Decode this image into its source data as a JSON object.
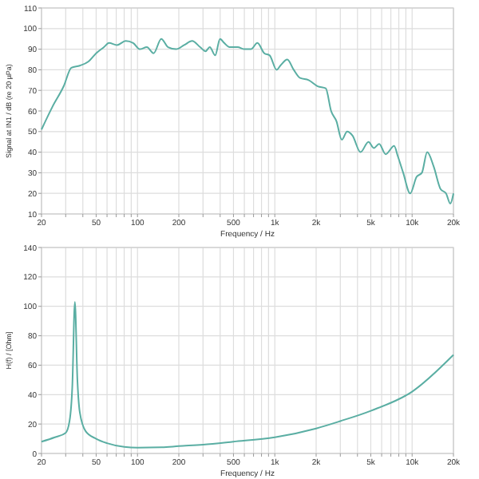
{
  "chart_data": [
    {
      "type": "line",
      "xlabel": "Frequency / Hz",
      "ylabel": "Signal at IN1 / dB (re 20 µPa)",
      "log": "x",
      "grid": true,
      "xlim": [
        20,
        20000
      ],
      "ylim": [
        10,
        110
      ],
      "xticks": [
        20,
        {
          "value": 30,
          "label": null
        },
        {
          "value": 40,
          "label": null
        },
        50,
        {
          "value": 60,
          "label": null
        },
        {
          "value": 70,
          "label": null
        },
        {
          "value": 80,
          "label": null
        },
        {
          "value": 90,
          "label": null
        },
        100,
        200,
        {
          "value": 300,
          "label": null
        },
        {
          "value": 400,
          "label": null
        },
        500,
        {
          "value": 600,
          "label": null
        },
        {
          "value": 700,
          "label": null
        },
        {
          "value": 800,
          "label": null
        },
        {
          "value": 900,
          "label": null
        },
        {
          "value": 1000,
          "label": "1k"
        },
        {
          "value": 2000,
          "label": "2k"
        },
        {
          "value": 3000,
          "label": null
        },
        {
          "value": 4000,
          "label": null
        },
        {
          "value": 5000,
          "label": "5k"
        },
        {
          "value": 6000,
          "label": null
        },
        {
          "value": 7000,
          "label": null
        },
        {
          "value": 8000,
          "label": null
        },
        {
          "value": 9000,
          "label": null
        },
        {
          "value": 10000,
          "label": "10k"
        },
        {
          "value": 20000,
          "label": "20k"
        }
      ],
      "yticks": [
        10,
        20,
        30,
        40,
        50,
        60,
        70,
        80,
        90,
        100,
        110
      ],
      "series": [
        {
          "color": "#5aaea3",
          "x": [
            20,
            24,
            29,
            33,
            38,
            44,
            50,
            57,
            62,
            71,
            82,
            93,
            104,
            117,
            131,
            149,
            167,
            191,
            219,
            250,
            286,
            313,
            336,
            368,
            399,
            428,
            468,
            536,
            602,
            670,
            747,
            839,
            917,
            1031,
            1097,
            1233,
            1373,
            1529,
            1764,
            2054,
            2350,
            2570,
            2812,
            3076,
            3364,
            3681,
            4208,
            4812,
            5260,
            5754,
            6412,
            7396,
            7872,
            8610,
            9680,
            10780,
            11780,
            12880,
            14360,
            16140,
            17660,
            18970,
            20000
          ],
          "values": [
            51,
            62,
            72,
            81,
            82,
            84,
            88,
            91,
            93,
            92,
            94,
            93,
            90,
            91,
            88,
            95,
            91,
            90,
            92,
            94,
            91,
            89,
            91,
            87,
            95,
            93,
            91,
            91,
            90,
            90,
            93,
            88,
            87,
            80,
            82,
            85,
            80,
            76,
            75,
            72,
            71,
            60,
            55,
            46,
            50,
            48,
            40,
            45,
            42,
            44,
            39,
            43,
            38,
            30,
            20,
            28,
            30,
            40,
            33,
            22,
            20,
            15,
            20
          ]
        }
      ]
    },
    {
      "type": "line",
      "xlabel": "Frequency / Hz",
      "ylabel": "H(f) / [Ohm]",
      "log": "x",
      "grid": true,
      "xlim": [
        20,
        20000
      ],
      "ylim": [
        0,
        140
      ],
      "xticks": [
        20,
        {
          "value": 30,
          "label": null
        },
        {
          "value": 40,
          "label": null
        },
        50,
        {
          "value": 60,
          "label": null
        },
        {
          "value": 70,
          "label": null
        },
        {
          "value": 80,
          "label": null
        },
        {
          "value": 90,
          "label": null
        },
        100,
        200,
        {
          "value": 300,
          "label": null
        },
        {
          "value": 400,
          "label": null
        },
        500,
        {
          "value": 600,
          "label": null
        },
        {
          "value": 700,
          "label": null
        },
        {
          "value": 800,
          "label": null
        },
        {
          "value": 900,
          "label": null
        },
        {
          "value": 1000,
          "label": "1k"
        },
        {
          "value": 2000,
          "label": "2k"
        },
        {
          "value": 3000,
          "label": null
        },
        {
          "value": 4000,
          "label": null
        },
        {
          "value": 5000,
          "label": "5k"
        },
        {
          "value": 6000,
          "label": null
        },
        {
          "value": 7000,
          "label": null
        },
        {
          "value": 8000,
          "label": null
        },
        {
          "value": 9000,
          "label": null
        },
        {
          "value": 10000,
          "label": "10k"
        },
        {
          "value": 20000,
          "label": "20k"
        }
      ],
      "yticks": [
        0,
        20,
        40,
        60,
        80,
        100,
        120,
        140
      ],
      "series": [
        {
          "color": "#5aaea3",
          "x": [
            20,
            25,
            30,
            32,
            33.5,
            35,
            36.5,
            38,
            42,
            50,
            60,
            80,
            100,
            150,
            200,
            300,
            500,
            1000,
            2000,
            3000,
            5000,
            10000,
            20000
          ],
          "values": [
            8,
            11,
            14,
            22,
            45,
            103,
            50,
            28,
            15,
            10,
            7,
            4.5,
            4,
            4.2,
            5,
            6,
            8,
            11,
            17,
            22,
            29,
            42,
            67
          ]
        }
      ]
    }
  ]
}
